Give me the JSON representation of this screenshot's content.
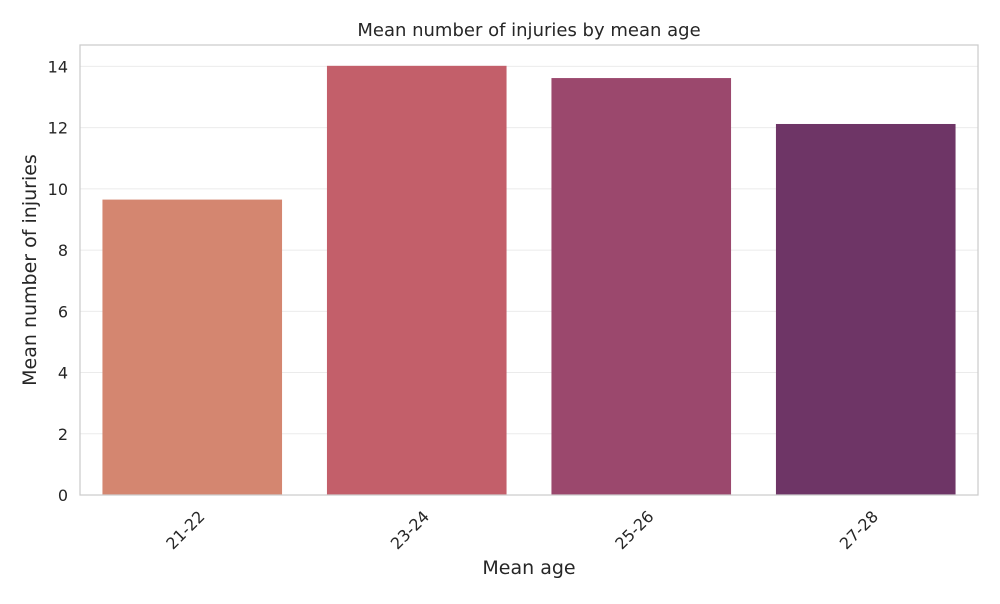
{
  "chart_data": {
    "type": "bar",
    "title": "Mean number of injuries by mean age",
    "xlabel": "Mean age",
    "ylabel": "Mean number of injuries",
    "categories": [
      "21-22",
      "23-24",
      "25-26",
      "27-28"
    ],
    "values": [
      9.65,
      14.02,
      13.62,
      12.12
    ],
    "ylim": [
      0,
      14.7
    ],
    "yticks": [
      0,
      2,
      4,
      6,
      8,
      10,
      12,
      14
    ],
    "colors": [
      "#d48670",
      "#c35f6a",
      "#9b486d",
      "#6e3566"
    ],
    "grid": true,
    "x_tick_rotation": 45
  }
}
